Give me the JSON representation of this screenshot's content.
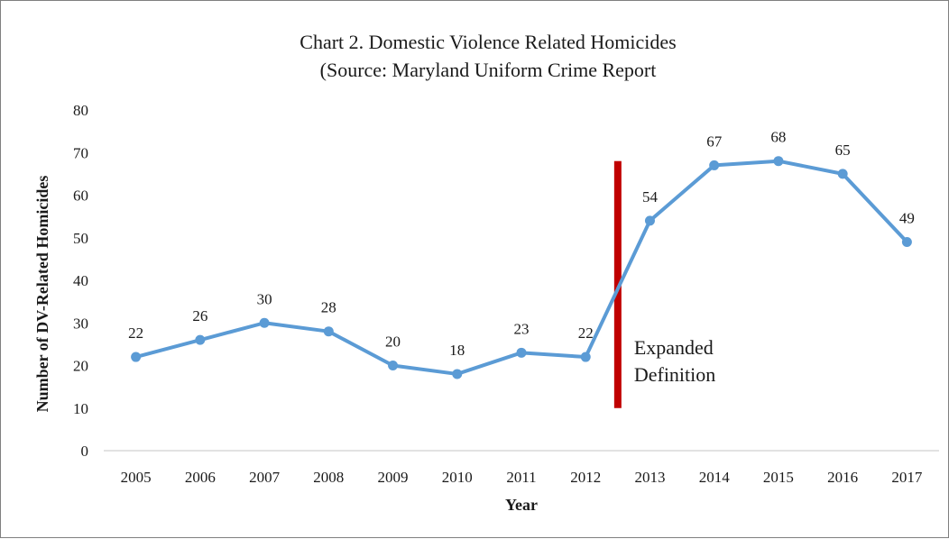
{
  "chart_data": {
    "type": "line",
    "title_lines": [
      "Chart 2. Domestic  Violence  Related  Homicides",
      "(Source:  Maryland  Uniform  Crime  Report"
    ],
    "xlabel": "Year",
    "ylabel": "Number  of DV-Related  Homicides",
    "categories": [
      "2005",
      "2006",
      "2007",
      "2008",
      "2009",
      "2010",
      "2011",
      "2012",
      "2013",
      "2014",
      "2015",
      "2016",
      "2017"
    ],
    "series": [
      {
        "values": [
          22,
          26,
          30,
          28,
          20,
          18,
          23,
          22,
          54,
          67,
          68,
          65,
          49
        ],
        "color": "#5b9bd5"
      }
    ],
    "data_labels": [
      "22",
      "26",
      "30",
      "28",
      "20",
      "18",
      "23",
      "22",
      "54",
      "67",
      "68",
      "65",
      "49"
    ],
    "ylim": [
      0,
      80
    ],
    "yticks": [
      0,
      10,
      20,
      30,
      40,
      50,
      60,
      70,
      80
    ],
    "ytick_labels": [
      "0",
      "10",
      "20",
      "30",
      "40",
      "50",
      "60",
      "70",
      "80"
    ],
    "grid": false,
    "legend": "none",
    "annotation": {
      "text_lines": [
        "Expanded",
        "Definition"
      ],
      "between": [
        "2012",
        "2013"
      ],
      "y_range": [
        10,
        68
      ],
      "color": "#c00000"
    }
  }
}
